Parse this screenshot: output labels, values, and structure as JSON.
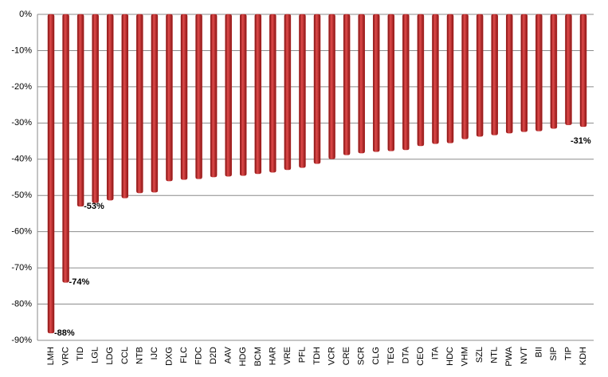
{
  "chart_data": {
    "type": "bar",
    "categories": [
      "LMH",
      "VRC",
      "TID",
      "LGL",
      "LDG",
      "CCL",
      "NTB",
      "IJC",
      "DXG",
      "FLC",
      "FDC",
      "D2D",
      "AAV",
      "HDG",
      "BCM",
      "HAR",
      "VRE",
      "PFL",
      "TDH",
      "VCR",
      "CRE",
      "SCR",
      "CLG",
      "TEG",
      "DTA",
      "CEO",
      "ITA",
      "HDC",
      "VHM",
      "SZL",
      "NTL",
      "PWA",
      "NVT",
      "BII",
      "SIP",
      "TIP",
      "KDH"
    ],
    "values": [
      -88,
      -74,
      -53,
      -52,
      -51.3,
      -50.7,
      -49.3,
      -49.1,
      -46,
      -45.6,
      -45.4,
      -44.9,
      -44.7,
      -44.5,
      -44,
      -43.6,
      -42.9,
      -42.3,
      -41.2,
      -39.9,
      -38.8,
      -38.3,
      -37.9,
      -37.7,
      -37.4,
      -36.3,
      -35.7,
      -35.5,
      -34.4,
      -33.7,
      -33.3,
      -32.8,
      -32.4,
      -32.2,
      -31.5,
      -30.5,
      -31
    ],
    "value_labels": [
      "-88%",
      "-74%",
      "-53%",
      null,
      null,
      null,
      null,
      null,
      null,
      null,
      null,
      null,
      null,
      null,
      null,
      null,
      null,
      null,
      null,
      null,
      null,
      null,
      null,
      null,
      null,
      null,
      null,
      null,
      null,
      null,
      null,
      null,
      null,
      null,
      null,
      null,
      "-31%"
    ],
    "color": "#b22222",
    "ylim": [
      -90,
      0
    ],
    "yticks": [
      {
        "value": 0,
        "label": "0%"
      },
      {
        "value": -10,
        "label": "-10%"
      },
      {
        "value": -20,
        "label": "-20%"
      },
      {
        "value": -30,
        "label": "-30%"
      },
      {
        "value": -40,
        "label": "-40%"
      },
      {
        "value": -50,
        "label": "-50%"
      },
      {
        "value": -60,
        "label": "-60%"
      },
      {
        "value": -70,
        "label": "-70%"
      },
      {
        "value": -80,
        "label": "-80%"
      },
      {
        "value": -90,
        "label": "-90%"
      }
    ],
    "grid": true
  }
}
